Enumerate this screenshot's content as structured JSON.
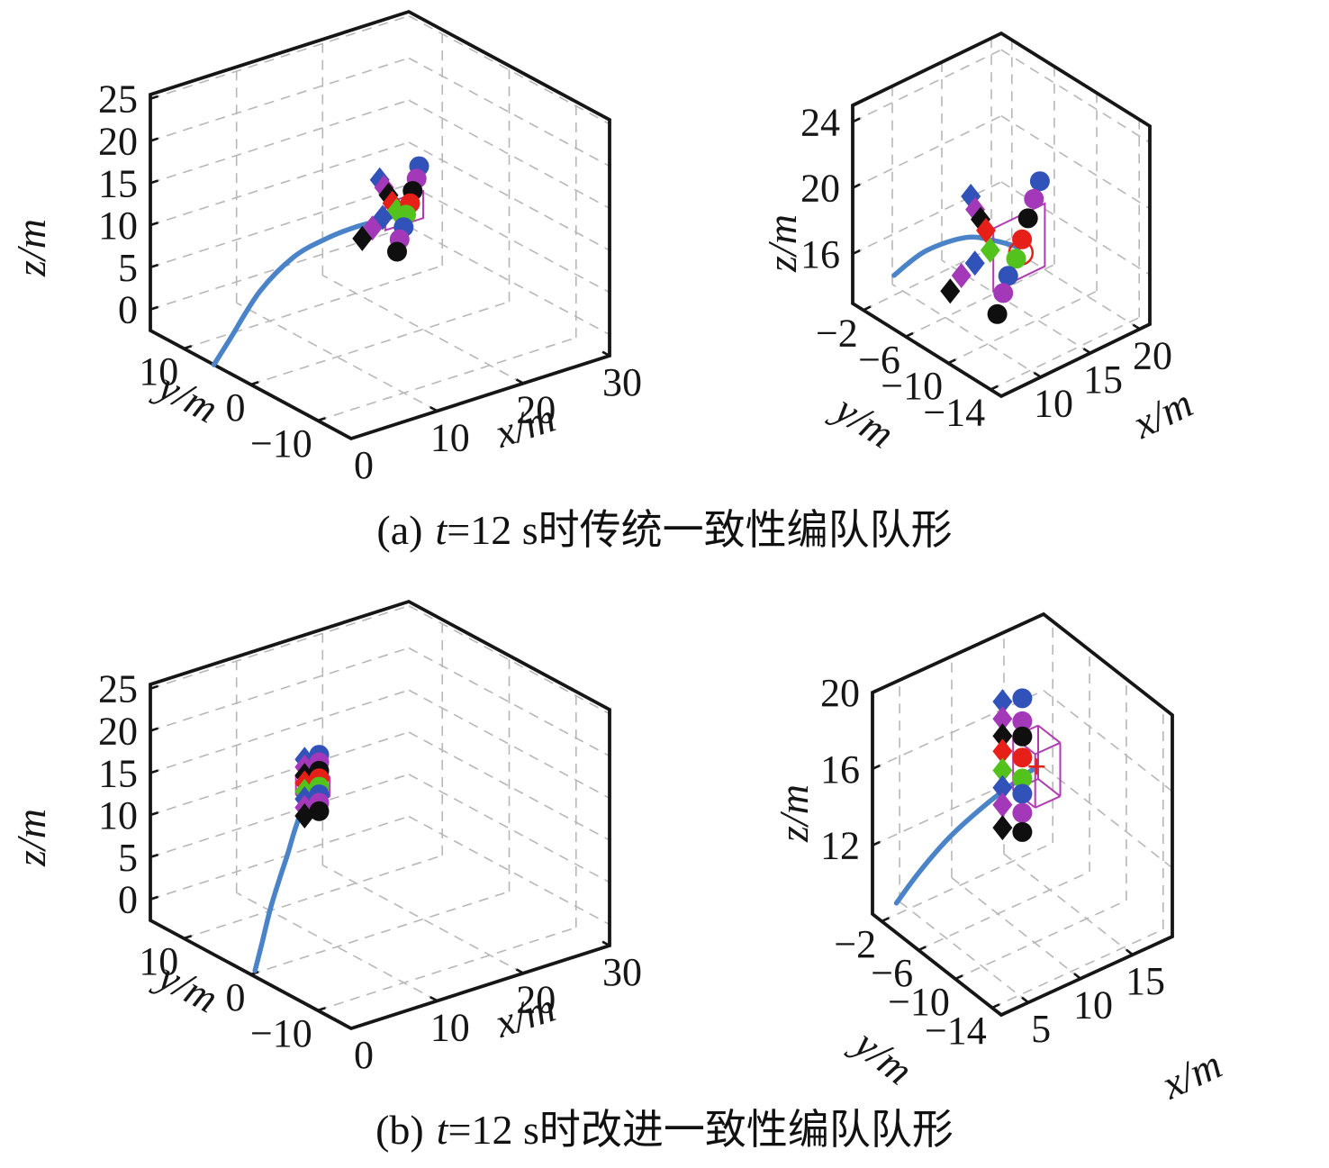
{
  "captions": {
    "a": {
      "index": "(a)",
      "t": "t",
      "text": "=12 s时传统一致性编队队形"
    },
    "b": {
      "index": "(b)",
      "t": "t",
      "text": "=12 s时改进一致性编队队形"
    }
  },
  "colors": {
    "uav_series": [
      "#3152b8",
      "#a339b8",
      "#0f0f0f",
      "#e71f19",
      "#53c21d",
      "#3152b8",
      "#a339b8",
      "#0f0f0f"
    ],
    "trajectory": "#4a83c8",
    "leader_frame": "#b03bb0",
    "leader_accent": "#e71f19",
    "grid": "#b7b7b7",
    "box_edge": "#161616"
  },
  "chart_data": {
    "type": "scatter",
    "subtype": "3d-scatter-small-multiples",
    "grid": "on",
    "legend": "none",
    "marker_shapes": [
      "diamond",
      "circle"
    ],
    "plots": [
      {
        "id": "a-full",
        "axes": {
          "x": {
            "label": "x/m",
            "range": [
              0,
              30
            ],
            "ticks": [
              0,
              10,
              20,
              30
            ]
          },
          "y": {
            "label": "y/m",
            "range": [
              -15,
              15
            ],
            "ticks": [
              10,
              0,
              -10
            ]
          },
          "z": {
            "label": "z/m",
            "range": [
              -2.5,
              25.5
            ],
            "ticks": [
              0,
              5,
              10,
              15,
              20,
              25
            ]
          }
        },
        "view": {
          "origin": [
            390,
            487
          ],
          "ex": [
            287,
            -92
          ],
          "ey": [
            -223,
            -120
          ],
          "ez": [
            0,
            -262
          ],
          "label_pos": {
            "z": [
              50,
              275,
              -90
            ],
            "y": [
              202,
              455,
              28
            ],
            "x": [
              588,
              487,
              -18
            ]
          }
        },
        "trajectory": [
          [
            0,
            5.5,
            -2.5
          ],
          [
            1,
            4.5,
            0.5
          ],
          [
            3,
            2.5,
            6.5
          ],
          [
            5,
            0,
            11
          ],
          [
            6.5,
            -3,
            14
          ],
          [
            7.5,
            -6,
            16.3
          ],
          [
            8.2,
            -9,
            18.2
          ],
          [
            8.8,
            -11.6,
            20
          ]
        ],
        "leader": {
          "pos": [
            8.8,
            -11.6,
            20.2
          ],
          "glyph": "square",
          "half_size": [
            2.2,
            1.6
          ],
          "ring_r": 9
        },
        "diamonds": [
          [
            7.2,
            -10,
            23.7
          ],
          [
            7.4,
            -10.4,
            22.9
          ],
          [
            7.6,
            -10.8,
            22.1
          ],
          [
            7.8,
            -11.1,
            21.2
          ],
          [
            8,
            -11.5,
            20.4
          ],
          [
            7,
            -10.7,
            19.6
          ],
          [
            6.2,
            -10.2,
            18.4
          ],
          [
            5.4,
            -9.7,
            17.2
          ]
        ],
        "circles": [
          [
            11,
            -11,
            24.5
          ],
          [
            10.4,
            -11.4,
            23.4
          ],
          [
            9.7,
            -11.7,
            22.3
          ],
          [
            9.1,
            -12.1,
            21.2
          ],
          [
            8.4,
            -12.4,
            20.2
          ],
          [
            7.8,
            -12.8,
            19.1
          ],
          [
            7.1,
            -13.1,
            18
          ],
          [
            6.5,
            -13.5,
            16.9
          ]
        ]
      },
      {
        "id": "a-zoom",
        "axes": {
          "x": {
            "label": "x/m",
            "range": [
              6,
              21
            ],
            "ticks": [
              10,
              15,
              20
            ]
          },
          "y": {
            "label": "y/m",
            "range": [
              -15,
              -1
            ],
            "ticks": [
              -2,
              -6,
              -10,
              -14
            ]
          },
          "z": {
            "label": "z/m",
            "range": [
              13,
              25
            ],
            "ticks": [
              16,
              20,
              24
            ]
          }
        },
        "view": {
          "origin": [
            1112,
            440
          ],
          "ex": [
            165,
            -80
          ],
          "ey": [
            -165,
            -103
          ],
          "ez": [
            0,
            -220
          ],
          "label_pos": {
            "z": [
              884,
              270,
              -90
            ],
            "y": [
              952,
              481,
              33
            ],
            "x": [
              1298,
              473,
              -26
            ]
          }
        },
        "trajectory": [
          [
            6.1,
            -4.8,
            16.2
          ],
          [
            8,
            -6,
            17.6
          ],
          [
            10.5,
            -7.5,
            18.3
          ],
          [
            12.3,
            -8.6,
            18
          ],
          [
            13.8,
            -9.4,
            17.5
          ]
        ],
        "leader": {
          "pos": [
            13.8,
            -9.4,
            17.5
          ],
          "glyph": "square",
          "half_size": [
            2.6,
            1.9
          ],
          "ring_r": 13
        },
        "diamonds": [
          [
            11.5,
            -7,
            20.3
          ],
          [
            11.3,
            -7.6,
            19.8
          ],
          [
            11.3,
            -8.1,
            19.4
          ],
          [
            11.2,
            -8.7,
            19
          ],
          [
            11,
            -9.3,
            18.1
          ],
          [
            8.8,
            -9.9,
            18.2
          ],
          [
            6.9,
            -10.4,
            18.2
          ],
          [
            6.2,
            -10,
            17.3
          ]
        ],
        "circles": [
          [
            17.4,
            -8,
            19.9
          ],
          [
            16.8,
            -8,
            19
          ],
          [
            16.2,
            -8,
            18
          ],
          [
            15.6,
            -8,
            16.9
          ],
          [
            15,
            -8,
            15.9
          ],
          [
            14.2,
            -8,
            15.1
          ],
          [
            13.7,
            -8,
            14.2
          ],
          [
            13.1,
            -8,
            13.1
          ]
        ]
      },
      {
        "id": "b-full",
        "axes": {
          "x": {
            "label": "x/m",
            "range": [
              0,
              30
            ],
            "ticks": [
              0,
              10,
              20,
              30
            ]
          },
          "y": {
            "label": "y/m",
            "range": [
              -15,
              15
            ],
            "ticks": [
              10,
              0,
              -10
            ]
          },
          "z": {
            "label": "z/m",
            "range": [
              -2.5,
              25.5
            ],
            "ticks": [
              0,
              5,
              10,
              15,
              20,
              25
            ]
          }
        },
        "view": {
          "origin": [
            390,
            1142
          ],
          "ex": [
            287,
            -92
          ],
          "ey": [
            -223,
            -120
          ],
          "ez": [
            0,
            -262
          ],
          "label_pos": {
            "z": [
              50,
              930,
              -90
            ],
            "y": [
              202,
              1110,
              28
            ],
            "x": [
              588,
              1142,
              -18
            ]
          }
        },
        "trajectory": [
          [
            0.8,
            0.4,
            -2.5
          ],
          [
            1.8,
            0.6,
            0.5
          ],
          [
            3,
            0.9,
            4
          ],
          [
            4.2,
            1.1,
            7
          ],
          [
            5.2,
            1.2,
            9.5
          ],
          [
            6.2,
            1.4,
            12
          ],
          [
            7.2,
            1.6,
            14
          ],
          [
            8.1,
            1.7,
            15.4
          ],
          [
            8.6,
            1.8,
            16.3
          ]
        ],
        "leader": {
          "pos": [
            8.6,
            1.8,
            16.3
          ],
          "glyph": "cube",
          "half_size": [
            1.1,
            1.1,
            1.2
          ],
          "ring_r": 9
        },
        "diamonds": [
          [
            7.8,
            2,
            19.6
          ],
          [
            7.8,
            2,
            18.7
          ],
          [
            7.8,
            2,
            17.7
          ],
          [
            7.8,
            2,
            16.8
          ],
          [
            7.8,
            2,
            15.8
          ],
          [
            7.8,
            2,
            14.9
          ],
          [
            7.8,
            2,
            13.9
          ],
          [
            7.8,
            2,
            12.9
          ]
        ],
        "circles": [
          [
            9.5,
            2,
            19.6
          ],
          [
            9.5,
            2,
            18.7
          ],
          [
            9.5,
            2,
            17.7
          ],
          [
            9.5,
            2,
            16.8
          ],
          [
            9.5,
            2,
            15.8
          ],
          [
            9.5,
            2,
            14.9
          ],
          [
            9.5,
            2,
            13.9
          ],
          [
            9.5,
            2,
            12.9
          ]
        ]
      },
      {
        "id": "b-zoom",
        "axes": {
          "x": {
            "label": "x/m",
            "range": [
              2.4,
              18.8
            ],
            "ticks": [
              5,
              10,
              15
            ]
          },
          "y": {
            "label": "y/m",
            "range": [
              -15,
              -1
            ],
            "ticks": [
              -2,
              -6,
              -10,
              -14
            ]
          },
          "z": {
            "label": "z/m",
            "range": [
              8.4,
              20
            ],
            "ticks": [
              12,
              16,
              20
            ]
          }
        },
        "view": {
          "origin": [
            1112,
            1127
          ],
          "ex": [
            190,
            -87
          ],
          "ey": [
            -143,
            -112
          ],
          "ez": [
            0,
            -246
          ],
          "label_pos": {
            "z": [
              897,
              903,
              -90
            ],
            "y": [
              972,
              1186,
              38
            ],
            "x": [
              1330,
              1207,
              -25
            ]
          }
        },
        "trajectory": [
          [
            4.7,
            -1,
            8.4
          ],
          [
            6.5,
            -1.5,
            9.8
          ],
          [
            9,
            -2,
            11.2
          ],
          [
            12,
            -2.6,
            12.4
          ],
          [
            14.5,
            -3,
            13.1
          ],
          [
            16.2,
            -3.2,
            13.5
          ]
        ],
        "leader": {
          "pos": [
            16.2,
            -3.2,
            13.5
          ],
          "glyph": "cube",
          "half_size": [
            1.2,
            1.2,
            1.4
          ],
          "ring_r": 9
        },
        "diamonds": [
          [
            13.1,
            -3,
            17.6
          ],
          [
            13.1,
            -3,
            16.7
          ],
          [
            13.1,
            -3,
            15.8
          ],
          [
            13.1,
            -3,
            15
          ],
          [
            13.1,
            -3,
            14
          ],
          [
            13.1,
            -3,
            13.1
          ],
          [
            13.1,
            -3,
            12.2
          ],
          [
            13.1,
            -3,
            11
          ]
        ],
        "circles": [
          [
            15,
            -3,
            17.3
          ],
          [
            15,
            -3,
            16.1
          ],
          [
            15,
            -3,
            15.3
          ],
          [
            15,
            -3,
            14.2
          ],
          [
            15,
            -3,
            13.1
          ],
          [
            15,
            -3,
            12.3
          ],
          [
            15,
            -3,
            11.3
          ],
          [
            15,
            -3,
            10.3
          ]
        ]
      }
    ]
  }
}
